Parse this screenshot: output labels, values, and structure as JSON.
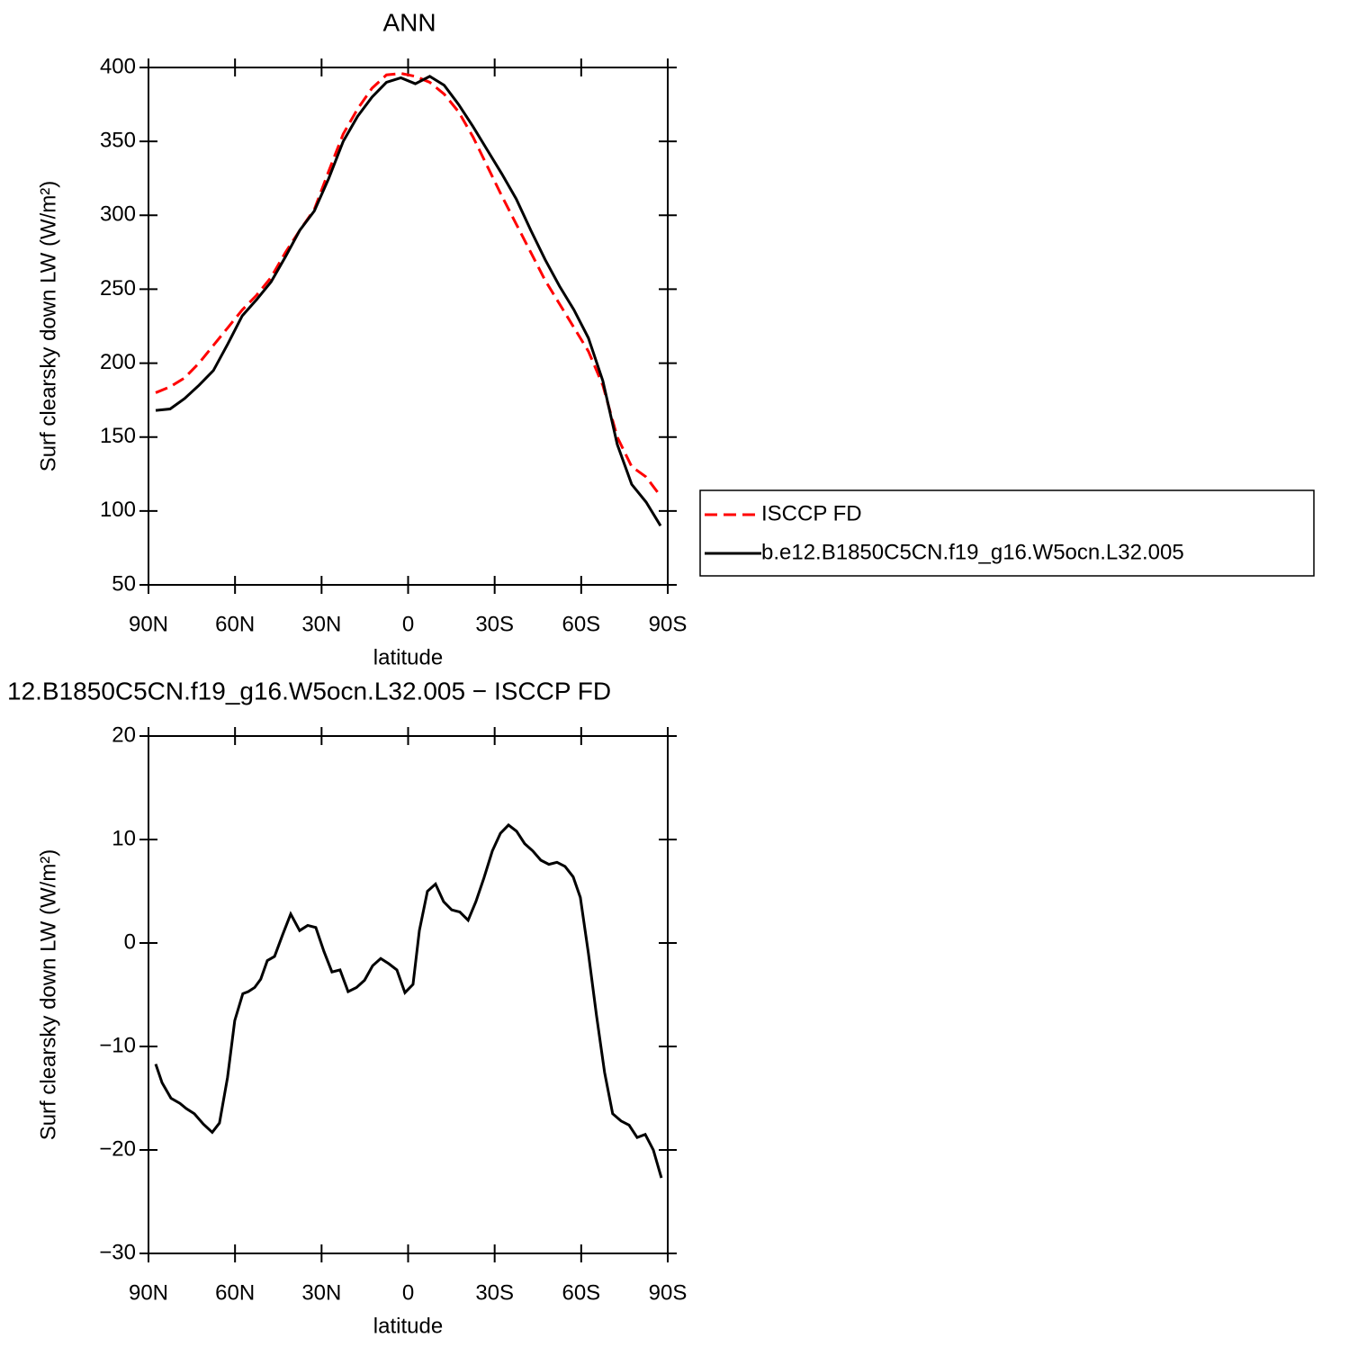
{
  "chart_data": [
    {
      "type": "line",
      "title": "ANN",
      "xlabel": "latitude",
      "ylabel": "Surf clearsky down LW (W/m²)",
      "xlim": [
        90,
        -90
      ],
      "xticks": [
        {
          "value": 90,
          "label": "90N"
        },
        {
          "value": 60,
          "label": "60N"
        },
        {
          "value": 30,
          "label": "30N"
        },
        0,
        {
          "value": -30,
          "label": "30S"
        },
        {
          "value": -60,
          "label": "60S"
        },
        {
          "value": -90,
          "label": "90S"
        }
      ],
      "ylim": [
        50,
        400
      ],
      "yticks": [
        50,
        100,
        150,
        200,
        250,
        300,
        350,
        400
      ],
      "legend": "right",
      "x": [
        87.5,
        82.5,
        77.5,
        72.5,
        67.5,
        62.5,
        57.5,
        52.5,
        47.5,
        42.5,
        37.5,
        32.5,
        27.5,
        22.5,
        17.5,
        12.5,
        7.5,
        2.5,
        -2.5,
        -7.5,
        -12.5,
        -17.5,
        -22.5,
        -27.5,
        -32.5,
        -37.5,
        -42.5,
        -47.5,
        -52.5,
        -57.5,
        -62.5,
        -67.5,
        -72.5,
        -77.5,
        -82.5,
        -87.5
      ],
      "series": [
        {
          "name": "ISCCP FD",
          "color": "#ff0000",
          "dash": "dashed",
          "values": [
            180,
            184,
            190,
            200,
            212,
            224,
            236,
            246,
            258,
            275,
            290,
            304,
            330,
            355,
            372,
            386,
            395,
            396,
            394,
            390,
            382,
            370,
            353,
            333,
            313,
            294,
            275,
            256,
            240,
            224,
            208,
            185,
            150,
            130,
            123,
            110
          ]
        },
        {
          "name": "b.e12.B1850C5CN.f19_g16.W5ocn.L32.005",
          "color": "#000000",
          "dash": "solid",
          "values": [
            168,
            169,
            176,
            185,
            195,
            213,
            232,
            243,
            255,
            272,
            290,
            303,
            325,
            350,
            367,
            380,
            390,
            393,
            389,
            394,
            388,
            375,
            360,
            344,
            328,
            311,
            290,
            270,
            252,
            236,
            217,
            188,
            145,
            118,
            106,
            90
          ]
        }
      ]
    },
    {
      "type": "line",
      "title": "12.B1850C5CN.f19_g16.W5ocn.L32.005 − ISCCP FD",
      "xlabel": "latitude",
      "ylabel": "Surf clearsky down LW (W/m²)",
      "xlim": [
        90,
        -90
      ],
      "xticks": [
        {
          "value": 90,
          "label": "90N"
        },
        {
          "value": 60,
          "label": "60N"
        },
        {
          "value": 30,
          "label": "30N"
        },
        0,
        {
          "value": -30,
          "label": "30S"
        },
        {
          "value": -60,
          "label": "60S"
        },
        {
          "value": -90,
          "label": "90S"
        }
      ],
      "ylim": [
        -30,
        20
      ],
      "yticks": [
        {
          "value": -30,
          "label": "−30"
        },
        {
          "value": -20,
          "label": "−20"
        },
        {
          "value": -10,
          "label": "−10"
        },
        0,
        10,
        20
      ],
      "x": [
        87.5,
        85.3,
        82.2,
        79.1,
        76.9,
        74.1,
        71.0,
        67.9,
        65.4,
        62.6,
        60.1,
        57.3,
        55.4,
        53.2,
        51.1,
        48.8,
        46.3,
        43.5,
        40.7,
        37.6,
        34.8,
        32.0,
        29.2,
        26.4,
        23.6,
        20.8,
        17.9,
        15.1,
        12.3,
        9.5,
        6.7,
        3.9,
        1.1,
        -1.7,
        -3.9,
        -6.7,
        -9.5,
        -12.3,
        -15.1,
        -17.9,
        -20.8,
        -23.5,
        -26.3,
        -29.2,
        -32.0,
        -34.8,
        -37.6,
        -40.4,
        -43.2,
        -46.0,
        -48.8,
        -51.6,
        -54.4,
        -57.2,
        -59.7,
        -62.5,
        -65.3,
        -68.1,
        -70.9,
        -73.8,
        -76.6,
        -79.4,
        -82.2,
        -85.0,
        -87.8
      ],
      "series": [
        {
          "color": "#000000",
          "dash": "solid",
          "values": [
            -11.7,
            -13.5,
            -15,
            -15.5,
            -16,
            -16.5,
            -17.5,
            -18.3,
            -17.4,
            -13,
            -7.5,
            -4.9,
            -4.7,
            -4.3,
            -3.5,
            -1.7,
            -1.3,
            0.8,
            2.8,
            1.2,
            1.7,
            1.5,
            -0.8,
            -2.8,
            -2.6,
            -4.7,
            -4.3,
            -3.6,
            -2.2,
            -1.5,
            -2,
            -2.6,
            -4.8,
            -4,
            1.2,
            5,
            5.7,
            4,
            3.2,
            3,
            2.2,
            4,
            6.3,
            8.9,
            10.6,
            11.4,
            10.8,
            9.6,
            8.9,
            8,
            7.6,
            7.8,
            7.4,
            6.4,
            4.4,
            -1,
            -7,
            -12.5,
            -16.5,
            -17.2,
            -17.6,
            -18.8,
            -18.5,
            -20,
            -22.7
          ]
        }
      ]
    }
  ]
}
